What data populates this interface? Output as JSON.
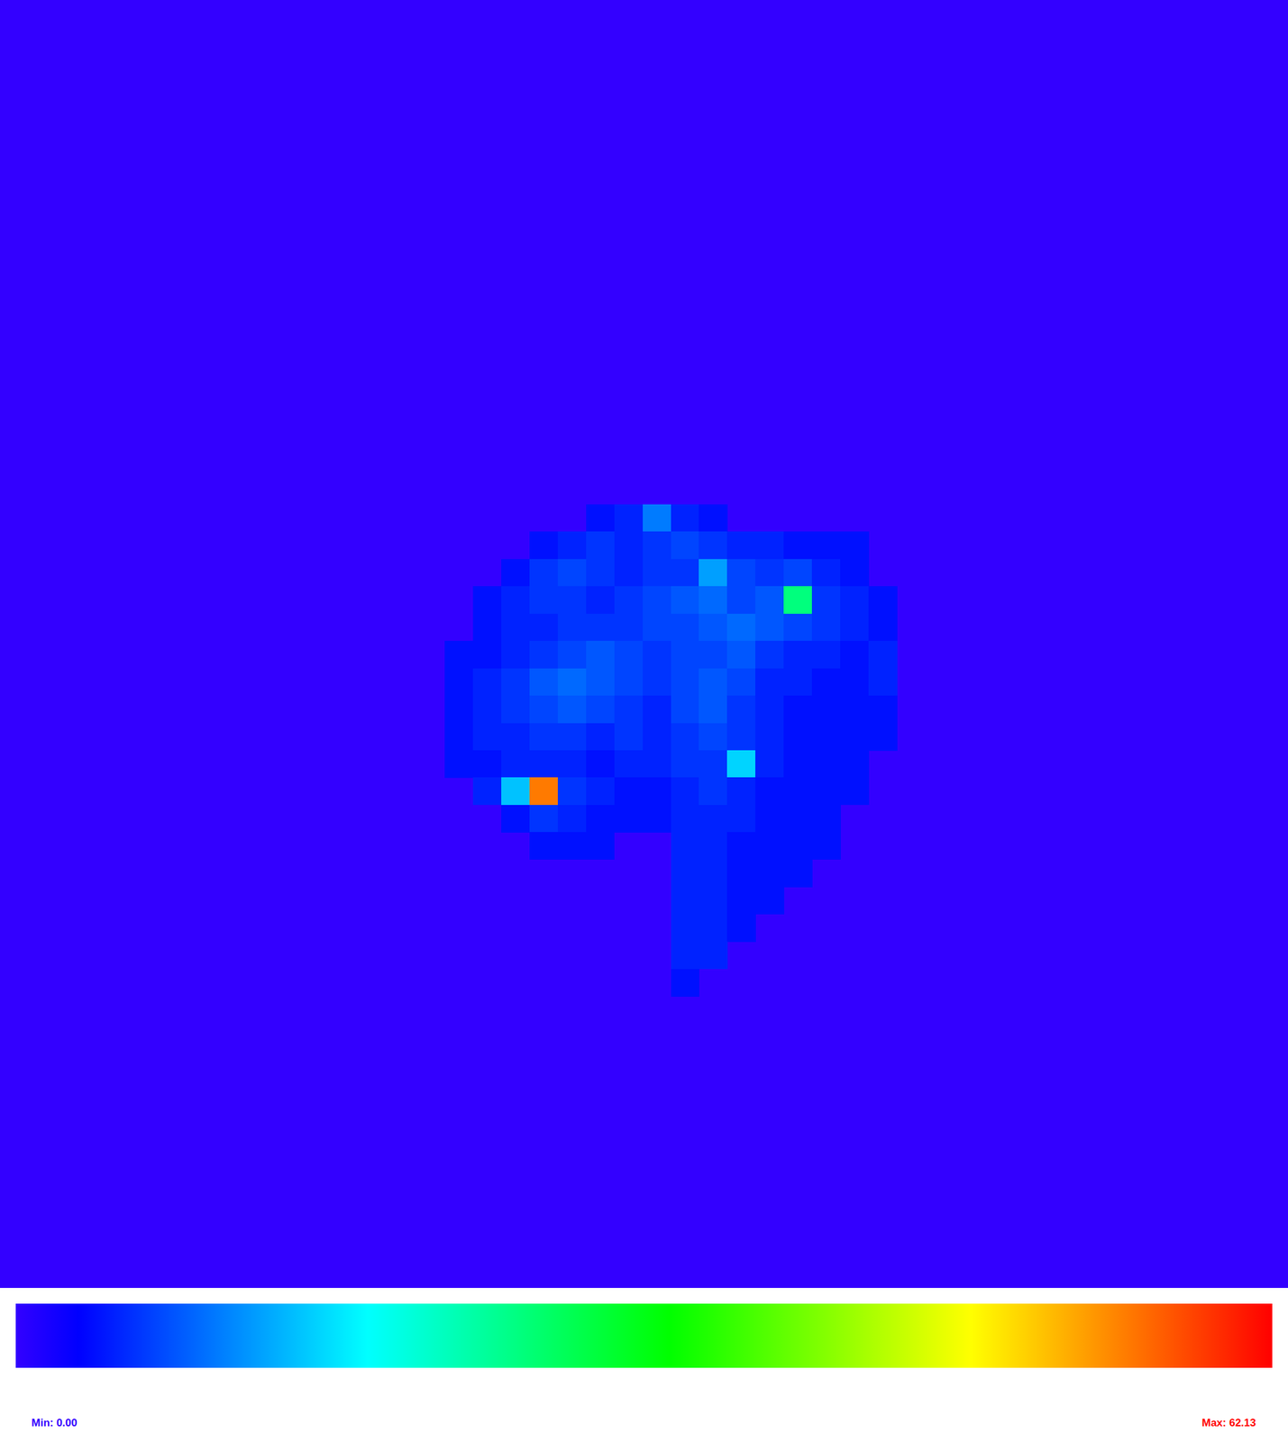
{
  "chart_data": {
    "type": "heatmap",
    "cells": [
      [
        null,
        null,
        null,
        null,
        null,
        4,
        5,
        10,
        5,
        4,
        null,
        null,
        null,
        null,
        null,
        null
      ],
      [
        null,
        null,
        null,
        4,
        5,
        6,
        5,
        6,
        7,
        6,
        5,
        5,
        4,
        4,
        4,
        null
      ],
      [
        null,
        null,
        4,
        6,
        7,
        6,
        5,
        6,
        6,
        12,
        7,
        6,
        7,
        5,
        4,
        null
      ],
      [
        null,
        4,
        5,
        6,
        6,
        5,
        6,
        7,
        8,
        9,
        7,
        8,
        25,
        6,
        5,
        4
      ],
      [
        null,
        4,
        5,
        5,
        6,
        6,
        6,
        7,
        7,
        8,
        9,
        8,
        7,
        6,
        5,
        4
      ],
      [
        4,
        4,
        5,
        6,
        7,
        8,
        7,
        6,
        7,
        7,
        8,
        6,
        5,
        5,
        4,
        5
      ],
      [
        4,
        5,
        6,
        8,
        9,
        8,
        7,
        6,
        7,
        8,
        7,
        5,
        5,
        4,
        4,
        5
      ],
      [
        4,
        5,
        6,
        7,
        8,
        7,
        6,
        5,
        7,
        8,
        6,
        5,
        4,
        4,
        4,
        4
      ],
      [
        4,
        5,
        5,
        6,
        6,
        5,
        6,
        5,
        6,
        7,
        6,
        5,
        4,
        4,
        4,
        4
      ],
      [
        4,
        4,
        5,
        5,
        5,
        4,
        5,
        5,
        6,
        6,
        15,
        5,
        4,
        4,
        4,
        null
      ],
      [
        null,
        5,
        14,
        55,
        6,
        5,
        4,
        4,
        5,
        6,
        5,
        4,
        4,
        4,
        4,
        null
      ],
      [
        null,
        null,
        4,
        6,
        5,
        4,
        4,
        4,
        5,
        5,
        5,
        4,
        4,
        4,
        null,
        null
      ],
      [
        null,
        null,
        null,
        4,
        4,
        4,
        null,
        null,
        5,
        5,
        4,
        4,
        4,
        4,
        null,
        null
      ],
      [
        null,
        null,
        null,
        null,
        null,
        null,
        null,
        null,
        5,
        5,
        4,
        4,
        4,
        null,
        null,
        null
      ],
      [
        null,
        null,
        null,
        null,
        null,
        null,
        null,
        null,
        5,
        5,
        4,
        4,
        null,
        null,
        null,
        null
      ],
      [
        null,
        null,
        null,
        null,
        null,
        null,
        null,
        null,
        5,
        5,
        4,
        null,
        null,
        null,
        null,
        null
      ],
      [
        null,
        null,
        null,
        null,
        null,
        null,
        null,
        null,
        5,
        5,
        null,
        null,
        null,
        null,
        null,
        null
      ],
      [
        null,
        null,
        null,
        null,
        null,
        null,
        null,
        null,
        4,
        null,
        null,
        null,
        null,
        null,
        null,
        null
      ]
    ],
    "colorbar": {
      "range": [
        0,
        62.13
      ],
      "ticks": [
        {
          "value": 0,
          "label": "Min: 0.00"
        },
        {
          "value": 62.13,
          "label": "Max: 62.13"
        }
      ]
    }
  }
}
